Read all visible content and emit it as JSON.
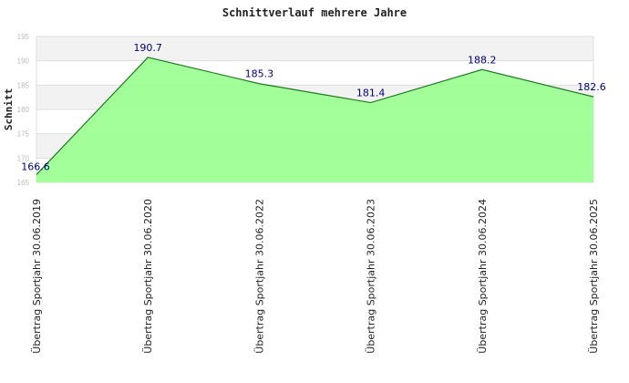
{
  "chart_data": {
    "type": "area",
    "title": "Schnittverlauf mehrere Jahre",
    "ylabel": "Schnitt",
    "xlabel": "",
    "categories": [
      "Übertrag Sportjahr 30.06.2019",
      "Übertrag Sportjahr 30.06.2020",
      "Übertrag Sportjahr 30.06.2022",
      "Übertrag Sportjahr 30.06.2023",
      "Übertrag Sportjahr 30.06.2024",
      "Übertrag Sportjahr 30.06.2025"
    ],
    "values": [
      166.6,
      190.7,
      185.3,
      181.4,
      188.2,
      182.6
    ],
    "data_labels": [
      "166.6",
      "190.7",
      "185.3",
      "181.4",
      "188.2",
      "182.6"
    ],
    "ylim": [
      165,
      195
    ],
    "yticks": [
      165,
      170,
      175,
      180,
      185,
      190,
      195
    ],
    "grid": true,
    "legend": "none",
    "colors": {
      "fill": "#99ff8f",
      "line": "#1f7a1f",
      "band_alt": "#f2f2f2",
      "label": "#000080"
    }
  }
}
